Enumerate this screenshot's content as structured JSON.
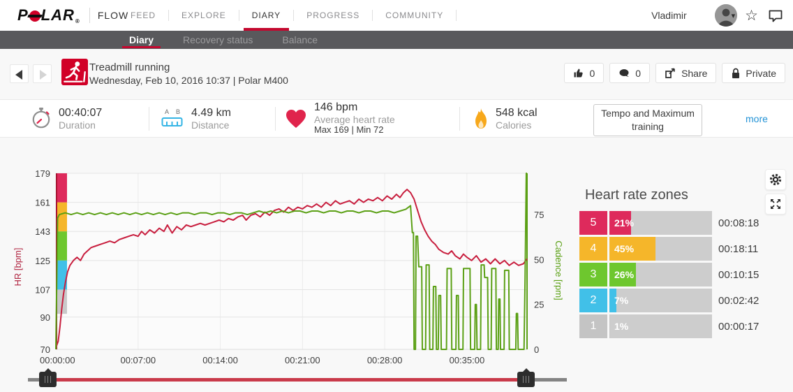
{
  "header": {
    "brand": "P",
    "brand_rest": "LAR",
    "brand_reg": "®",
    "flow": "FLOW",
    "nav": [
      {
        "label": "FEED",
        "active": false
      },
      {
        "label": "EXPLORE",
        "active": false
      },
      {
        "label": "DIARY",
        "active": true
      },
      {
        "label": "PROGRESS",
        "active": false
      },
      {
        "label": "COMMUNITY",
        "active": false
      }
    ],
    "user": {
      "name": "Vladimir",
      "caret": "▾",
      "star": "☆"
    }
  },
  "subnav": {
    "tabs": [
      {
        "label": "Diary",
        "active": true
      },
      {
        "label": "Recovery status",
        "active": false
      },
      {
        "label": "Balance",
        "active": false
      }
    ]
  },
  "activity": {
    "title": "Treadmill running",
    "subtitle": "Wednesday, Feb 10, 2016 10:37  |  Polar M400",
    "likes": "0",
    "comments": "0",
    "share_label": "Share",
    "private_label": "Private"
  },
  "stats": {
    "duration": {
      "value": "00:40:07",
      "label": "Duration"
    },
    "distance": {
      "value": "4.49 km",
      "label": "Distance",
      "marker_a": "A",
      "marker_b": "B"
    },
    "heart_rate": {
      "value": "146 bpm",
      "label": "Average heart rate",
      "maxmin": "Max 169   |   Min 72"
    },
    "calories": {
      "value": "548 kcal",
      "label": "Calories"
    },
    "benefit": "Tempo and Maximum training",
    "more_label": "more"
  },
  "chart_data": {
    "type": "line",
    "x_axis": {
      "total_minutes": 40.117,
      "tick_minutes": [
        0,
        7,
        14,
        21,
        28,
        35
      ],
      "tick_labels": [
        "00:00:00",
        "00:07:00",
        "00:14:00",
        "00:21:00",
        "00:28:00",
        "00:35:00"
      ]
    },
    "hr_axis": {
      "label": "HR [bpm]",
      "color": "#b02440",
      "min": 70,
      "max": 179,
      "ticks": [
        179,
        161,
        143,
        125,
        107,
        90,
        70
      ]
    },
    "cadence_axis": {
      "label": "Cadence [rpm]",
      "color": "#5ba015",
      "min": 0,
      "max": 98,
      "ticks": [
        75,
        50,
        25,
        0
      ]
    },
    "zone_strip": [
      {
        "zone": "5",
        "from": 161,
        "to": 179,
        "color": "#de2a5c"
      },
      {
        "zone": "4",
        "from": 143,
        "to": 161,
        "color": "#f5b62a"
      },
      {
        "zone": "3",
        "from": 125,
        "to": 143,
        "color": "#6ec72e"
      },
      {
        "zone": "2",
        "from": 107,
        "to": 125,
        "color": "#41c0e8"
      },
      {
        "zone": "1",
        "from": 92,
        "to": 107,
        "color": "#c9c9c9"
      }
    ],
    "series": [
      {
        "name": "HR",
        "unit": "bpm",
        "color": "#c81e3e",
        "axis": "hr",
        "points": [
          [
            0,
            71
          ],
          [
            0.2,
            75
          ],
          [
            0.35,
            84
          ],
          [
            0.5,
            95
          ],
          [
            0.65,
            104
          ],
          [
            0.8,
            111
          ],
          [
            1,
            118
          ],
          [
            1.2,
            122
          ],
          [
            1.5,
            125
          ],
          [
            1.8,
            127
          ],
          [
            2.1,
            125
          ],
          [
            2.4,
            129
          ],
          [
            2.7,
            131
          ],
          [
            3,
            133
          ],
          [
            3.4,
            134
          ],
          [
            3.8,
            135
          ],
          [
            4.2,
            136
          ],
          [
            4.6,
            137
          ],
          [
            5,
            136
          ],
          [
            5.4,
            138
          ],
          [
            5.8,
            139
          ],
          [
            6.2,
            140
          ],
          [
            6.6,
            141
          ],
          [
            7,
            140
          ],
          [
            7.3,
            143
          ],
          [
            7.6,
            141
          ],
          [
            8,
            144
          ],
          [
            8.4,
            142
          ],
          [
            8.8,
            145
          ],
          [
            9.2,
            143
          ],
          [
            9.5,
            147
          ],
          [
            9.9,
            142
          ],
          [
            10.3,
            146
          ],
          [
            10.7,
            144
          ],
          [
            11.1,
            147
          ],
          [
            11.5,
            146
          ],
          [
            11.9,
            147
          ],
          [
            12.3,
            148
          ],
          [
            12.7,
            147
          ],
          [
            13.1,
            148
          ],
          [
            13.5,
            149
          ],
          [
            13.9,
            150
          ],
          [
            14.3,
            149
          ],
          [
            14.7,
            151
          ],
          [
            15.1,
            150
          ],
          [
            15.5,
            152
          ],
          [
            15.9,
            153
          ],
          [
            16.2,
            150
          ],
          [
            16.6,
            153
          ],
          [
            17,
            154
          ],
          [
            17.4,
            152
          ],
          [
            17.8,
            155
          ],
          [
            18.2,
            153
          ],
          [
            18.6,
            156
          ],
          [
            19,
            157
          ],
          [
            19.4,
            155
          ],
          [
            19.8,
            158
          ],
          [
            20.2,
            156
          ],
          [
            20.6,
            158
          ],
          [
            21,
            157
          ],
          [
            21.4,
            159
          ],
          [
            21.8,
            158
          ],
          [
            22.2,
            160
          ],
          [
            22.6,
            158
          ],
          [
            23,
            161
          ],
          [
            23.4,
            159
          ],
          [
            23.8,
            162
          ],
          [
            24.2,
            160
          ],
          [
            24.6,
            161
          ],
          [
            25,
            162
          ],
          [
            25.4,
            160
          ],
          [
            25.8,
            163
          ],
          [
            26.2,
            161
          ],
          [
            26.6,
            163
          ],
          [
            27,
            162
          ],
          [
            27.4,
            164
          ],
          [
            27.8,
            162
          ],
          [
            28.2,
            165
          ],
          [
            28.6,
            163
          ],
          [
            29,
            166
          ],
          [
            29.3,
            164
          ],
          [
            29.6,
            167
          ],
          [
            29.9,
            169
          ],
          [
            30.2,
            167
          ],
          [
            30.5,
            163
          ],
          [
            30.8,
            156
          ],
          [
            31.1,
            149
          ],
          [
            31.4,
            144
          ],
          [
            31.7,
            140
          ],
          [
            32,
            137
          ],
          [
            32.3,
            135
          ],
          [
            32.6,
            132
          ],
          [
            33,
            130
          ],
          [
            33.4,
            129
          ],
          [
            33.7,
            131
          ],
          [
            34,
            128
          ],
          [
            34.4,
            126
          ],
          [
            34.7,
            129
          ],
          [
            35,
            127
          ],
          [
            35.4,
            125
          ],
          [
            35.8,
            128
          ],
          [
            36.2,
            124
          ],
          [
            36.6,
            126
          ],
          [
            37,
            123
          ],
          [
            37.4,
            126
          ],
          [
            37.8,
            123
          ],
          [
            38.2,
            125
          ],
          [
            38.6,
            122
          ],
          [
            39,
            124
          ],
          [
            39.4,
            122
          ],
          [
            39.8,
            123
          ],
          [
            40.117,
            126
          ]
        ]
      },
      {
        "name": "Cadence",
        "unit": "rpm",
        "color": "#5ba015",
        "axis": "cadence",
        "points": [
          [
            0,
            0
          ],
          [
            0.15,
            73
          ],
          [
            0.3,
            75
          ],
          [
            0.8,
            76
          ],
          [
            1.3,
            75
          ],
          [
            1.8,
            76
          ],
          [
            2.3,
            75
          ],
          [
            2.8,
            76
          ],
          [
            3.3,
            75
          ],
          [
            3.8,
            76
          ],
          [
            4.3,
            75
          ],
          [
            4.8,
            76
          ],
          [
            5.3,
            75
          ],
          [
            5.8,
            76
          ],
          [
            6.3,
            75
          ],
          [
            6.8,
            76
          ],
          [
            7.3,
            75
          ],
          [
            7.8,
            76
          ],
          [
            8.3,
            75
          ],
          [
            8.8,
            76
          ],
          [
            9.3,
            75
          ],
          [
            9.8,
            76
          ],
          [
            10.3,
            75
          ],
          [
            10.8,
            76
          ],
          [
            11.3,
            76
          ],
          [
            11.8,
            75
          ],
          [
            12.3,
            76
          ],
          [
            12.8,
            76
          ],
          [
            13.3,
            75
          ],
          [
            13.8,
            76
          ],
          [
            14.3,
            76
          ],
          [
            14.8,
            75
          ],
          [
            15.3,
            76
          ],
          [
            15.8,
            76
          ],
          [
            16.3,
            75
          ],
          [
            16.8,
            76
          ],
          [
            17.3,
            77
          ],
          [
            17.8,
            76
          ],
          [
            18.3,
            77
          ],
          [
            18.8,
            76
          ],
          [
            19.3,
            77
          ],
          [
            19.8,
            76
          ],
          [
            20.3,
            77
          ],
          [
            20.8,
            77
          ],
          [
            21.3,
            76
          ],
          [
            21.8,
            77
          ],
          [
            22.3,
            77
          ],
          [
            22.8,
            76
          ],
          [
            23.3,
            77
          ],
          [
            23.8,
            77
          ],
          [
            24.3,
            76
          ],
          [
            24.8,
            77
          ],
          [
            25.3,
            77
          ],
          [
            25.8,
            76
          ],
          [
            26.3,
            77
          ],
          [
            26.8,
            77
          ],
          [
            27.3,
            76
          ],
          [
            27.8,
            77
          ],
          [
            28.3,
            77
          ],
          [
            28.8,
            76
          ],
          [
            29.3,
            77
          ],
          [
            29.8,
            78
          ],
          [
            30.2,
            80
          ],
          [
            30.35,
            65
          ],
          [
            30.45,
            65
          ],
          [
            30.5,
            0
          ],
          [
            30.62,
            0
          ],
          [
            30.67,
            63
          ],
          [
            30.8,
            63
          ],
          [
            30.9,
            46
          ],
          [
            31.15,
            46
          ],
          [
            31.2,
            0
          ],
          [
            31.48,
            0
          ],
          [
            31.53,
            47
          ],
          [
            31.78,
            47
          ],
          [
            31.83,
            0
          ],
          [
            32.1,
            0
          ],
          [
            32.15,
            35
          ],
          [
            32.35,
            35
          ],
          [
            32.4,
            0
          ],
          [
            32.56,
            0
          ],
          [
            32.61,
            30
          ],
          [
            32.76,
            30
          ],
          [
            32.81,
            0
          ],
          [
            33.26,
            0
          ],
          [
            33.31,
            45
          ],
          [
            33.66,
            45
          ],
          [
            33.71,
            0
          ],
          [
            34.06,
            0
          ],
          [
            34.11,
            30
          ],
          [
            34.26,
            30
          ],
          [
            34.31,
            0
          ],
          [
            34.66,
            0
          ],
          [
            34.71,
            45
          ],
          [
            35.26,
            45
          ],
          [
            35.31,
            0
          ],
          [
            35.66,
            0
          ],
          [
            35.71,
            25
          ],
          [
            35.81,
            25
          ],
          [
            35.86,
            0
          ],
          [
            36.16,
            0
          ],
          [
            36.21,
            47
          ],
          [
            36.46,
            47
          ],
          [
            36.51,
            40
          ],
          [
            36.76,
            40
          ],
          [
            36.81,
            0
          ],
          [
            37.06,
            0
          ],
          [
            37.11,
            45
          ],
          [
            37.46,
            45
          ],
          [
            37.51,
            0
          ],
          [
            37.66,
            0
          ],
          [
            37.71,
            28
          ],
          [
            37.81,
            28
          ],
          [
            37.86,
            0
          ],
          [
            38.16,
            0
          ],
          [
            38.21,
            44
          ],
          [
            38.56,
            44
          ],
          [
            38.61,
            0
          ],
          [
            39.16,
            0
          ],
          [
            39.21,
            20
          ],
          [
            39.31,
            20
          ],
          [
            39.36,
            0
          ],
          [
            39.86,
            0
          ],
          [
            39.95,
            40
          ],
          [
            40.05,
            98
          ],
          [
            40.117,
            98
          ]
        ]
      }
    ]
  },
  "zones": {
    "title": "Heart rate zones",
    "rows": [
      {
        "zone": "5",
        "percent": "21%",
        "pct": 21,
        "time": "00:08:18",
        "color": "#de2a5c"
      },
      {
        "zone": "4",
        "percent": "45%",
        "pct": 45,
        "time": "00:18:11",
        "color": "#f5b62a"
      },
      {
        "zone": "3",
        "percent": "26%",
        "pct": 26,
        "time": "00:10:15",
        "color": "#6ec72e"
      },
      {
        "zone": "2",
        "percent": "7%",
        "pct": 7,
        "time": "00:02:42",
        "color": "#41c0e8"
      },
      {
        "zone": "1",
        "percent": "1%",
        "pct": 1,
        "time": "00:00:17",
        "color": "#c4c4c4"
      }
    ]
  }
}
